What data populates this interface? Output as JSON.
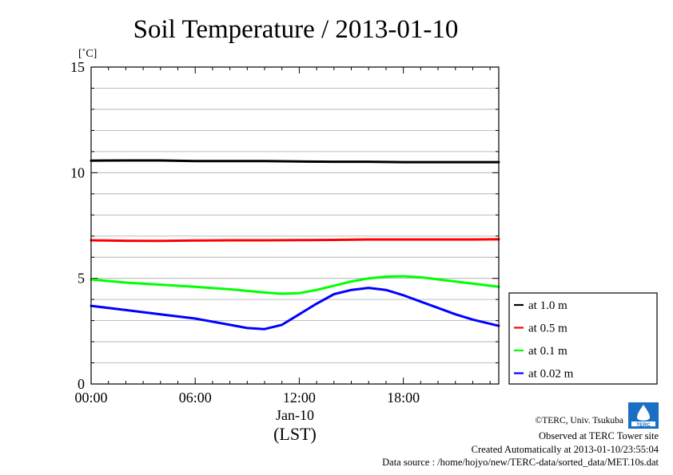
{
  "chart_data": {
    "type": "line",
    "title": "Soil Temperature / 2013-01-10",
    "ylabel": "[˚C]",
    "xlabel": "(LST)",
    "date_label": "Jan-10",
    "ylim": [
      0,
      15
    ],
    "yticks": [
      0,
      5,
      10,
      15
    ],
    "ytick_labels": [
      "0",
      "5",
      "10",
      "15"
    ],
    "xlim": [
      0,
      23.5
    ],
    "xticks": [
      0,
      6,
      12,
      18
    ],
    "xtick_labels": [
      "00:00",
      "06:00",
      "12:00",
      "18:00"
    ],
    "grid": true,
    "legend_placement": "right",
    "series": [
      {
        "name": "at 1.0 m",
        "color": "#000000",
        "x": [
          0,
          2,
          4,
          6,
          8,
          10,
          12,
          14,
          16,
          18,
          20,
          22,
          23.5
        ],
        "y": [
          10.57,
          10.58,
          10.58,
          10.55,
          10.55,
          10.55,
          10.53,
          10.52,
          10.52,
          10.5,
          10.5,
          10.5,
          10.5
        ]
      },
      {
        "name": "at 0.5 m",
        "color": "#ff0000",
        "x": [
          0,
          2,
          4,
          6,
          8,
          10,
          12,
          14,
          16,
          18,
          20,
          22,
          23.5
        ],
        "y": [
          6.8,
          6.78,
          6.77,
          6.79,
          6.8,
          6.8,
          6.81,
          6.82,
          6.84,
          6.84,
          6.84,
          6.84,
          6.85
        ]
      },
      {
        "name": "at 0.1 m",
        "color": "#00ff00",
        "x": [
          0,
          2,
          4,
          6,
          8,
          10,
          11,
          12,
          13,
          14,
          15,
          16,
          17,
          18,
          19,
          20,
          21,
          22,
          23.5
        ],
        "y": [
          4.95,
          4.8,
          4.7,
          4.6,
          4.48,
          4.33,
          4.27,
          4.3,
          4.45,
          4.65,
          4.85,
          5.0,
          5.08,
          5.1,
          5.05,
          4.95,
          4.85,
          4.75,
          4.6
        ]
      },
      {
        "name": "at 0.02 m",
        "color": "#0000ff",
        "x": [
          0,
          2,
          4,
          6,
          8,
          9,
          10,
          11,
          12,
          13,
          14,
          15,
          16,
          17,
          18,
          19,
          20,
          21,
          22,
          23.5
        ],
        "y": [
          3.7,
          3.5,
          3.3,
          3.1,
          2.8,
          2.65,
          2.6,
          2.8,
          3.3,
          3.8,
          4.25,
          4.45,
          4.55,
          4.45,
          4.2,
          3.9,
          3.6,
          3.3,
          3.05,
          2.75
        ]
      }
    ]
  },
  "footer": {
    "copyright": "©TERC, Univ. Tsukuba",
    "site": "Observed at TERC Tower site",
    "created": "Created Automatically at 2013-01-10/23:55:04",
    "source": "Data source : /home/hojyo/new/TERC-data/sorted_data/MET.10s.dat"
  },
  "logo_text": "TERC"
}
